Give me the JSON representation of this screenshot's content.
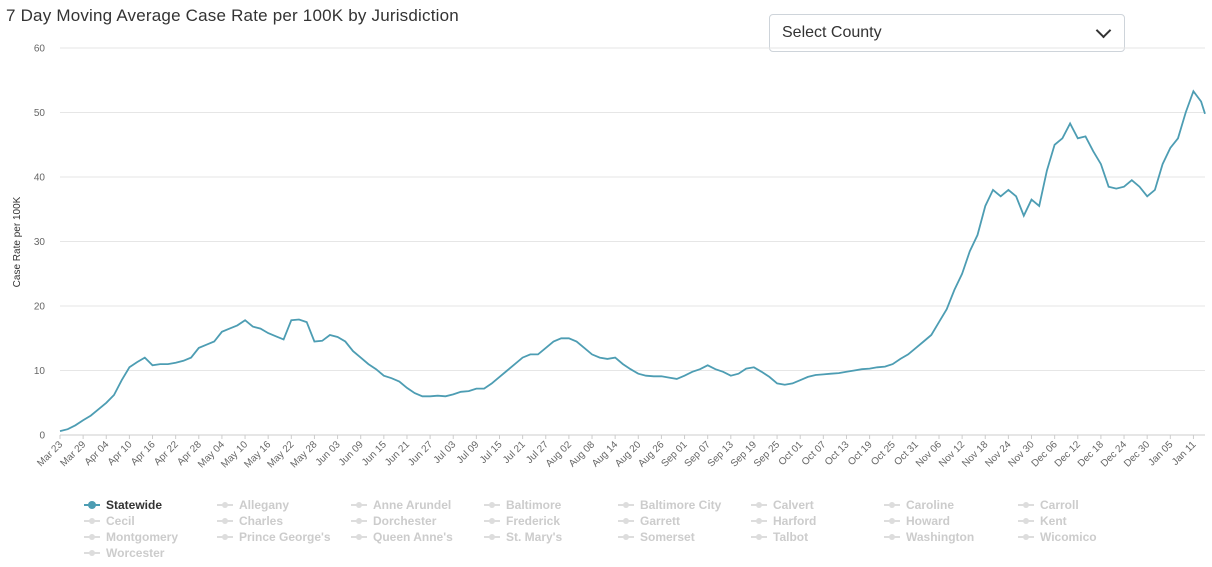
{
  "title": "7 Day Moving Average Case Rate per 100K by Jurisdiction",
  "select": {
    "selected": "Select County"
  },
  "colors": {
    "line": "#4d9db3",
    "grid": "#e6e6e6",
    "legend_inactive": "#cccccc"
  },
  "chart_data": {
    "type": "line",
    "title": "7 Day Moving Average Case Rate per 100K by Jurisdiction",
    "xlabel": "",
    "ylabel": "Case Rate per 100K",
    "ylim": [
      0,
      60
    ],
    "yticks": [
      0,
      10,
      20,
      30,
      40,
      50,
      60
    ],
    "grid": true,
    "legend_position": "bottom",
    "x_start": "Mar 23",
    "x_end": "Jan 14",
    "xticks": [
      "Mar 23",
      "Mar 29",
      "Apr 04",
      "Apr 10",
      "Apr 16",
      "Apr 22",
      "Apr 28",
      "May 04",
      "May 10",
      "May 16",
      "May 22",
      "May 28",
      "Jun 03",
      "Jun 09",
      "Jun 15",
      "Jun 21",
      "Jun 27",
      "Jul 03",
      "Jul 09",
      "Jul 15",
      "Jul 21",
      "Jul 27",
      "Aug 02",
      "Aug 08",
      "Aug 14",
      "Aug 20",
      "Aug 26",
      "Sep 01",
      "Sep 07",
      "Sep 13",
      "Sep 19",
      "Sep 25",
      "Oct 01",
      "Oct 07",
      "Oct 13",
      "Oct 19",
      "Oct 25",
      "Oct 31",
      "Nov 06",
      "Nov 12",
      "Nov 18",
      "Nov 24",
      "Nov 30",
      "Dec 06",
      "Dec 12",
      "Dec 18",
      "Dec 24",
      "Dec 30",
      "Jan 05",
      "Jan 11"
    ],
    "series": [
      {
        "name": "Statewide",
        "visible": true,
        "x": [
          "Mar 23",
          "Mar 25",
          "Mar 27",
          "Mar 29",
          "Mar 31",
          "Apr 02",
          "Apr 04",
          "Apr 06",
          "Apr 08",
          "Apr 10",
          "Apr 12",
          "Apr 14",
          "Apr 16",
          "Apr 18",
          "Apr 20",
          "Apr 22",
          "Apr 24",
          "Apr 26",
          "Apr 28",
          "Apr 30",
          "May 02",
          "May 04",
          "May 06",
          "May 08",
          "May 10",
          "May 12",
          "May 14",
          "May 16",
          "May 18",
          "May 20",
          "May 22",
          "May 24",
          "May 26",
          "May 28",
          "May 30",
          "Jun 01",
          "Jun 03",
          "Jun 05",
          "Jun 07",
          "Jun 09",
          "Jun 11",
          "Jun 13",
          "Jun 15",
          "Jun 17",
          "Jun 19",
          "Jun 21",
          "Jun 23",
          "Jun 25",
          "Jun 27",
          "Jun 29",
          "Jul 01",
          "Jul 03",
          "Jul 05",
          "Jul 07",
          "Jul 09",
          "Jul 11",
          "Jul 13",
          "Jul 15",
          "Jul 17",
          "Jul 19",
          "Jul 21",
          "Jul 23",
          "Jul 25",
          "Jul 27",
          "Jul 29",
          "Jul 31",
          "Aug 02",
          "Aug 04",
          "Aug 06",
          "Aug 08",
          "Aug 10",
          "Aug 12",
          "Aug 14",
          "Aug 16",
          "Aug 18",
          "Aug 20",
          "Aug 22",
          "Aug 24",
          "Aug 26",
          "Aug 28",
          "Aug 30",
          "Sep 01",
          "Sep 03",
          "Sep 05",
          "Sep 07",
          "Sep 09",
          "Sep 11",
          "Sep 13",
          "Sep 15",
          "Sep 17",
          "Sep 19",
          "Sep 21",
          "Sep 23",
          "Sep 25",
          "Sep 27",
          "Sep 29",
          "Oct 01",
          "Oct 03",
          "Oct 05",
          "Oct 07",
          "Oct 09",
          "Oct 11",
          "Oct 13",
          "Oct 15",
          "Oct 17",
          "Oct 19",
          "Oct 21",
          "Oct 23",
          "Oct 25",
          "Oct 27",
          "Oct 29",
          "Oct 31",
          "Nov 02",
          "Nov 04",
          "Nov 06",
          "Nov 08",
          "Nov 10",
          "Nov 12",
          "Nov 14",
          "Nov 16",
          "Nov 18",
          "Nov 20",
          "Nov 22",
          "Nov 24",
          "Nov 26",
          "Nov 28",
          "Nov 30",
          "Dec 02",
          "Dec 04",
          "Dec 06",
          "Dec 08",
          "Dec 10",
          "Dec 12",
          "Dec 14",
          "Dec 16",
          "Dec 18",
          "Dec 20",
          "Dec 22",
          "Dec 24",
          "Dec 26",
          "Dec 28",
          "Dec 30",
          "Jan 01",
          "Jan 03",
          "Jan 05",
          "Jan 07",
          "Jan 09",
          "Jan 11",
          "Jan 13",
          "Jan 14"
        ],
        "values": [
          0.6,
          0.9,
          1.5,
          2.3,
          3.0,
          4.0,
          5.0,
          6.2,
          8.5,
          10.5,
          11.3,
          12.0,
          10.8,
          11.0,
          11.0,
          11.2,
          11.5,
          12.0,
          13.5,
          14.0,
          14.5,
          16.0,
          16.5,
          17.0,
          17.8,
          16.8,
          16.5,
          15.8,
          15.3,
          14.8,
          17.8,
          17.9,
          17.5,
          14.5,
          14.6,
          15.5,
          15.2,
          14.5,
          13.0,
          12.0,
          11.0,
          10.2,
          9.2,
          8.8,
          8.3,
          7.3,
          6.5,
          6.0,
          6.0,
          6.1,
          6.0,
          6.3,
          6.7,
          6.8,
          7.2,
          7.2,
          8.0,
          9.0,
          10.0,
          11.0,
          12.0,
          12.5,
          12.5,
          13.5,
          14.5,
          15.0,
          15.0,
          14.5,
          13.5,
          12.5,
          12.0,
          11.8,
          12.0,
          11.0,
          10.2,
          9.5,
          9.2,
          9.1,
          9.1,
          8.9,
          8.7,
          9.2,
          9.8,
          10.2,
          10.8,
          10.2,
          9.8,
          9.2,
          9.5,
          10.3,
          10.5,
          9.8,
          9.0,
          8.0,
          7.8,
          8.0,
          8.5,
          9.0,
          9.3,
          9.4,
          9.5,
          9.6,
          9.8,
          10.0,
          10.2,
          10.3,
          10.5,
          10.6,
          11.0,
          11.8,
          12.5,
          13.5,
          14.5,
          15.5,
          17.5,
          19.5,
          22.5,
          25.0,
          28.5,
          31.0,
          35.5,
          38.0,
          37.0,
          38.0,
          37.0,
          34.0,
          36.5,
          35.5,
          41.0,
          45.0,
          46.0,
          48.3,
          46.0,
          46.3,
          44.0,
          42.0,
          38.5,
          38.2,
          38.5,
          39.5,
          38.5,
          37.0,
          38.0,
          42.0,
          44.5,
          46.0,
          50.0,
          53.3,
          51.7,
          49.8
        ]
      }
    ],
    "legend": [
      "Statewide",
      "Allegany",
      "Anne Arundel",
      "Baltimore",
      "Baltimore City",
      "Calvert",
      "Caroline",
      "Carroll",
      "Cecil",
      "Charles",
      "Dorchester",
      "Frederick",
      "Garrett",
      "Harford",
      "Howard",
      "Kent",
      "Montgomery",
      "Prince George's",
      "Queen Anne's",
      "St. Mary's",
      "Somerset",
      "Talbot",
      "Washington",
      "Wicomico",
      "Worcester"
    ]
  }
}
